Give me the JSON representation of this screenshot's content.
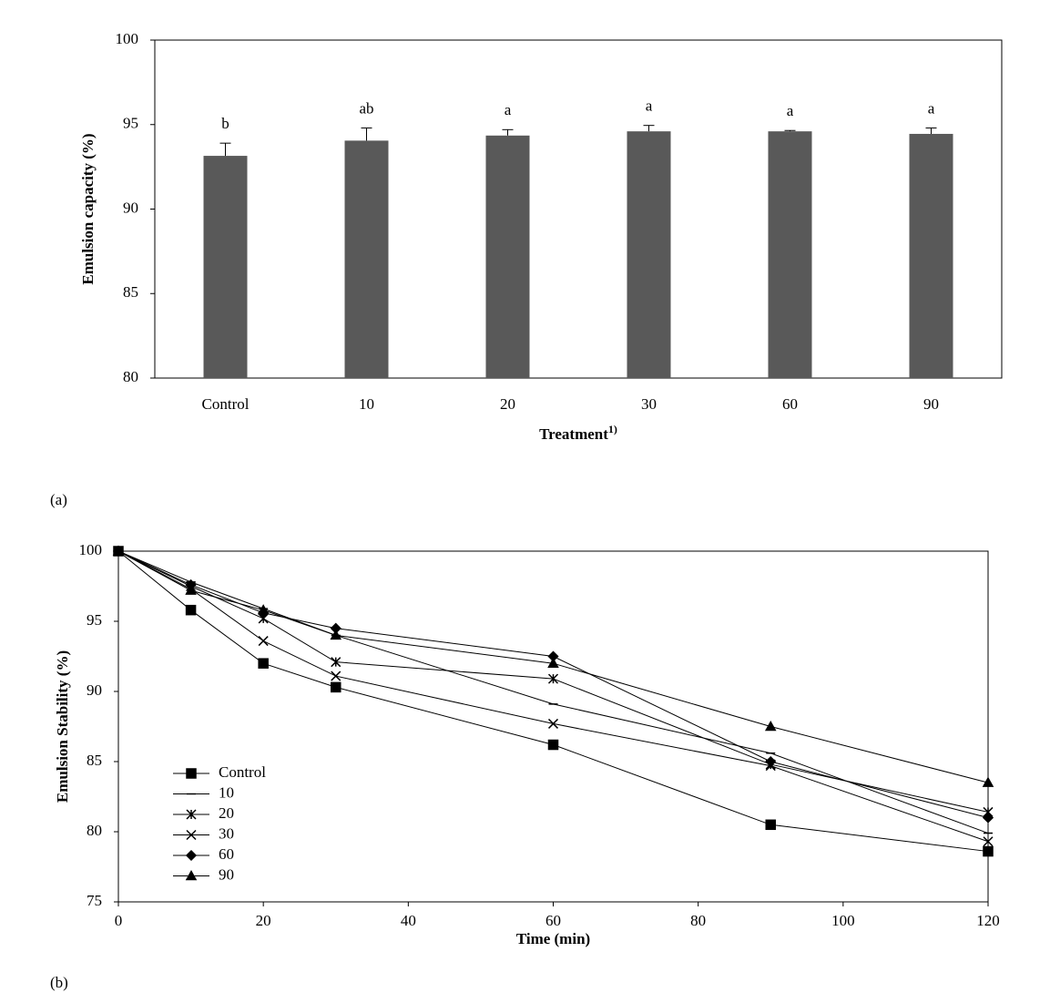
{
  "chart_data": [
    {
      "type": "bar",
      "caption": "(a)",
      "ylabel": "Emulsion capacity (%)",
      "xlabel": "Treatment",
      "xlabel_sup": "1)",
      "categories": [
        "Control",
        "10",
        "20",
        "30",
        "60",
        "90"
      ],
      "values": [
        93.15,
        94.05,
        94.35,
        94.6,
        94.6,
        94.45
      ],
      "errors": [
        0.75,
        0.75,
        0.35,
        0.35,
        0.05,
        0.35
      ],
      "letters": [
        "b",
        "ab",
        "a",
        "a",
        "a",
        "a"
      ],
      "color": "#595959",
      "ylim": [
        80,
        100
      ],
      "yticks": [
        80,
        85,
        90,
        95,
        100
      ]
    },
    {
      "type": "line",
      "caption": "(b)",
      "ylabel": "Emulsion Stability (%)",
      "xlabel": "Time (min)",
      "x": [
        0,
        10,
        20,
        30,
        60,
        90,
        120
      ],
      "series": [
        {
          "name": "Control",
          "color": "#000000",
          "marker": "square",
          "values": [
            100,
            95.8,
            92.0,
            90.3,
            86.2,
            80.5,
            78.6
          ]
        },
        {
          "name": "10",
          "color": "#000000",
          "marker": "dash",
          "values": [
            100,
            97.8,
            95.9,
            94.0,
            89.1,
            85.6,
            79.9
          ]
        },
        {
          "name": "20",
          "color": "#000000",
          "marker": "star",
          "values": [
            100,
            97.5,
            95.2,
            92.1,
            90.9,
            84.8,
            81.4
          ]
        },
        {
          "name": "30",
          "color": "#000000",
          "marker": "x",
          "values": [
            100,
            97.3,
            93.6,
            91.1,
            87.7,
            84.7,
            79.3
          ]
        },
        {
          "name": "60",
          "color": "#000000",
          "marker": "diamond",
          "values": [
            100,
            97.6,
            95.6,
            94.5,
            92.5,
            85.0,
            81.0
          ]
        },
        {
          "name": "90",
          "color": "#000000",
          "marker": "triangle",
          "values": [
            100,
            97.2,
            95.8,
            94.0,
            92.0,
            87.5,
            83.5
          ]
        }
      ],
      "xlim": [
        0,
        120
      ],
      "xticks": [
        0,
        20,
        40,
        60,
        80,
        100,
        120
      ],
      "ylim": [
        75,
        100
      ],
      "yticks": [
        75,
        80,
        85,
        90,
        95,
        100
      ],
      "legend": "lower left"
    }
  ]
}
